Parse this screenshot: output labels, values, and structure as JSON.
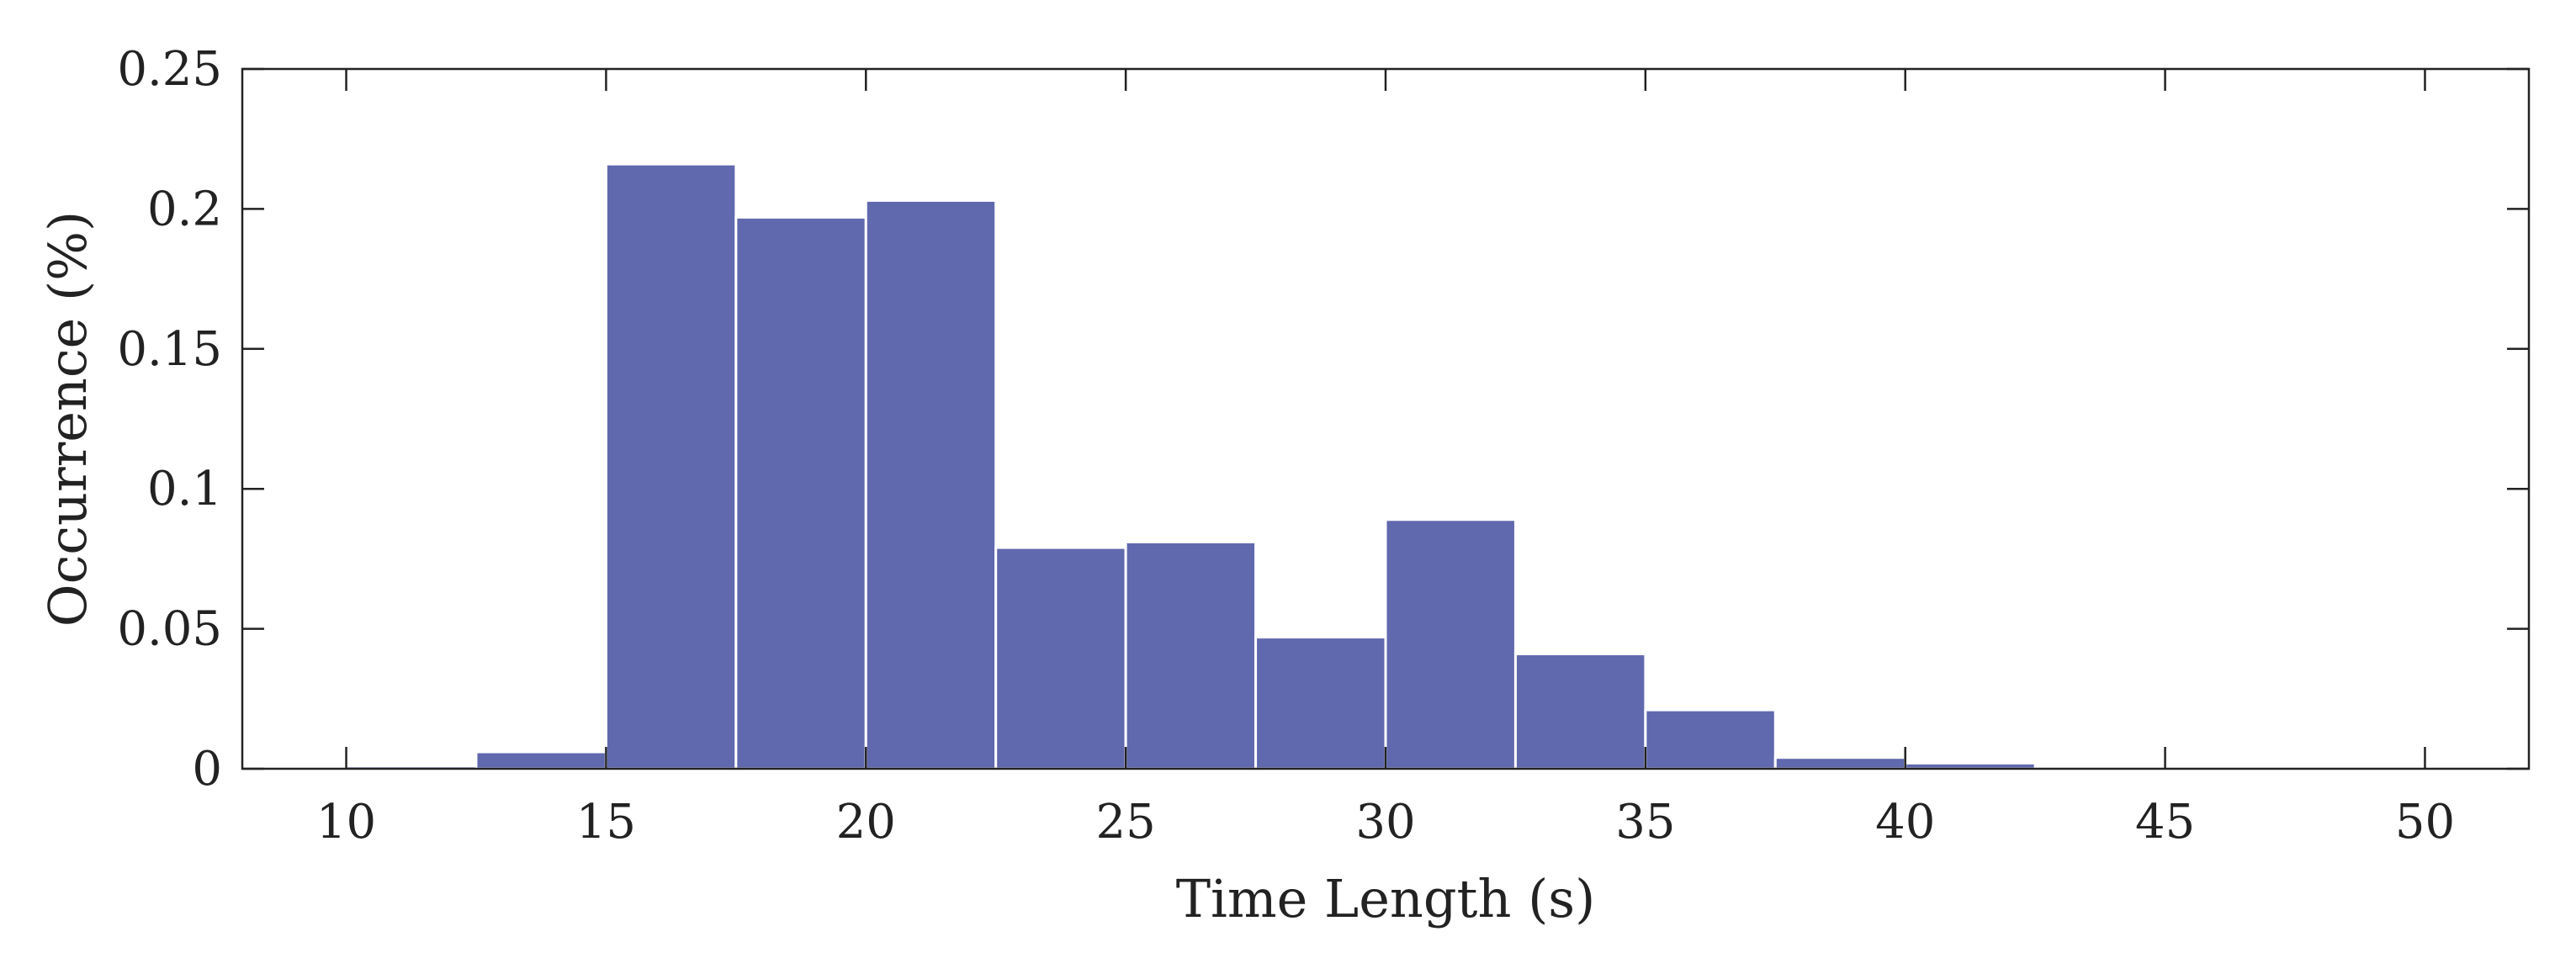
{
  "chart_data": {
    "type": "bar",
    "title": "",
    "xlabel": "Time Length (s)",
    "ylabel": "Occurrence (%)",
    "xlim": [
      8,
      52
    ],
    "ylim": [
      0,
      0.25
    ],
    "xticks": [
      10,
      15,
      20,
      25,
      30,
      35,
      40,
      45,
      50
    ],
    "yticks": [
      0,
      0.05,
      0.1,
      0.15,
      0.2,
      0.25
    ],
    "ytick_labels": [
      "0",
      "0.05",
      "0.1",
      "0.15",
      "0.2",
      "0.25"
    ],
    "bin_width": 2.5,
    "bins": [
      {
        "x_start": 10,
        "x_end": 12.5,
        "value": 0.001
      },
      {
        "x_start": 12.5,
        "x_end": 15,
        "value": 0.006
      },
      {
        "x_start": 15,
        "x_end": 17.5,
        "value": 0.216
      },
      {
        "x_start": 17.5,
        "x_end": 20,
        "value": 0.197
      },
      {
        "x_start": 20,
        "x_end": 22.5,
        "value": 0.203
      },
      {
        "x_start": 22.5,
        "x_end": 25,
        "value": 0.079
      },
      {
        "x_start": 25,
        "x_end": 27.5,
        "value": 0.081
      },
      {
        "x_start": 27.5,
        "x_end": 30,
        "value": 0.047
      },
      {
        "x_start": 30,
        "x_end": 32.5,
        "value": 0.089
      },
      {
        "x_start": 32.5,
        "x_end": 35,
        "value": 0.041
      },
      {
        "x_start": 35,
        "x_end": 37.5,
        "value": 0.021
      },
      {
        "x_start": 37.5,
        "x_end": 40,
        "value": 0.004
      },
      {
        "x_start": 40,
        "x_end": 42.5,
        "value": 0.002
      }
    ],
    "bar_color": "#6068ae",
    "bar_edge_color": "#ffffff",
    "axis_color": "#222222",
    "grid": false,
    "box": true
  }
}
